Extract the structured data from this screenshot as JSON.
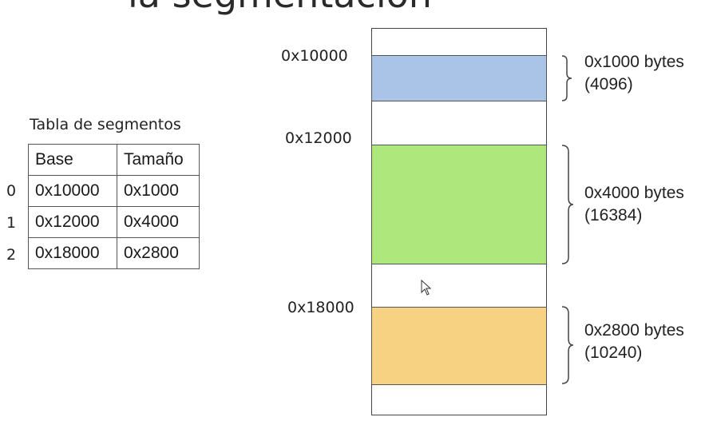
{
  "title": "la segmentación",
  "table": {
    "caption": "Tabla de segmentos",
    "headers": [
      "Base",
      "Tamaño"
    ],
    "rows": [
      {
        "index": "0",
        "base": "0x10000",
        "size": "0x1000"
      },
      {
        "index": "1",
        "base": "0x12000",
        "size": "0x4000"
      },
      {
        "index": "2",
        "base": "0x18000",
        "size": "0x2800"
      }
    ]
  },
  "memory": {
    "segments": [
      {
        "address": "0x10000",
        "size_hex": "0x1000 bytes",
        "size_dec": "(4096)",
        "color": "#a9c4e6"
      },
      {
        "address": "0x12000",
        "size_hex": "0x4000 bytes",
        "size_dec": "(16384)",
        "color": "#aee87c"
      },
      {
        "address": "0x18000",
        "size_hex": "0x2800 bytes",
        "size_dec": "(10240)",
        "color": "#f6d282"
      }
    ]
  }
}
